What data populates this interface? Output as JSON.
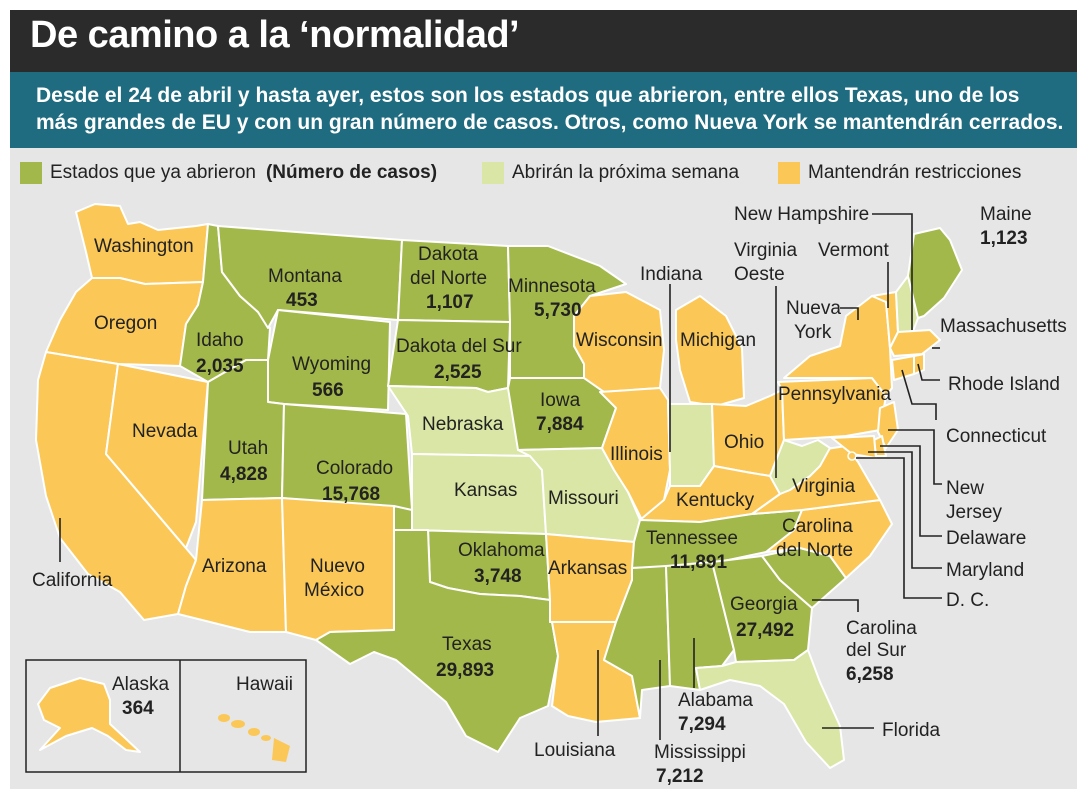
{
  "title": "De camino a la ‘normalidad’",
  "subtitle": "Desde el 24 de abril y hasta ayer, estos son los estados que abrieron, entre ellos Texas, uno de los más grandes de EU y con un gran número de casos. Otros, como Nueva York se mantendrán cerrados.",
  "colors": {
    "open": "#a3b84a",
    "next_week": "#d9e6a5",
    "restricted": "#fbc858",
    "title_bg": "#2b2b2b",
    "subtitle_bg": "#1f6b80",
    "map_bg": "#e6e6e6"
  },
  "legend": {
    "open_label": "Estados que ya abrieron",
    "cases_note": "(Número de casos)",
    "next_week_label": "Abrirán la próxima semana",
    "restricted_label": "Mantendrán restricciones"
  },
  "states": {
    "washington": {
      "name": "Washington",
      "status": "restricted"
    },
    "oregon": {
      "name": "Oregon",
      "status": "restricted"
    },
    "california": {
      "name": "California",
      "status": "restricted"
    },
    "nevada": {
      "name": "Nevada",
      "status": "restricted"
    },
    "idaho": {
      "name": "Idaho",
      "cases": "2,035",
      "status": "open"
    },
    "montana": {
      "name": "Montana",
      "cases": "453",
      "status": "open"
    },
    "wyoming": {
      "name": "Wyoming",
      "cases": "566",
      "status": "open"
    },
    "utah": {
      "name": "Utah",
      "cases": "4,828",
      "status": "open"
    },
    "colorado": {
      "name": "Colorado",
      "cases": "15,768",
      "status": "open"
    },
    "arizona": {
      "name": "Arizona",
      "status": "restricted"
    },
    "new_mexico": {
      "name_1": "Nuevo",
      "name_2": "México",
      "status": "restricted"
    },
    "north_dakota": {
      "name_1": "Dakota",
      "name_2": "del Norte",
      "cases": "1,107",
      "status": "open"
    },
    "south_dakota": {
      "name": "Dakota del Sur",
      "cases": "2,525",
      "status": "open"
    },
    "nebraska": {
      "name": "Nebraska",
      "status": "next_week"
    },
    "kansas": {
      "name": "Kansas",
      "status": "next_week"
    },
    "oklahoma": {
      "name": "Oklahoma",
      "cases": "3,748",
      "status": "open"
    },
    "texas": {
      "name": "Texas",
      "cases": "29,893",
      "status": "open"
    },
    "minnesota": {
      "name": "Minnesota",
      "cases": "5,730",
      "status": "open"
    },
    "iowa": {
      "name": "Iowa",
      "cases": "7,884",
      "status": "open"
    },
    "missouri": {
      "name": "Missouri",
      "status": "next_week"
    },
    "arkansas": {
      "name": "Arkansas",
      "status": "restricted"
    },
    "louisiana": {
      "name": "Louisiana",
      "status": "restricted"
    },
    "wisconsin": {
      "name": "Wisconsin",
      "status": "restricted"
    },
    "illinois": {
      "name": "Illinois",
      "status": "restricted"
    },
    "michigan": {
      "name": "Michigan",
      "status": "restricted"
    },
    "indiana": {
      "name": "Indiana",
      "status": "next_week"
    },
    "ohio": {
      "name": "Ohio",
      "status": "restricted"
    },
    "kentucky": {
      "name": "Kentucky",
      "status": "restricted"
    },
    "tennessee": {
      "name": "Tennessee",
      "cases": "11,891",
      "status": "open"
    },
    "mississippi": {
      "name": "Mississippi",
      "cases": "7,212",
      "status": "open"
    },
    "alabama": {
      "name": "Alabama",
      "cases": "7,294",
      "status": "open"
    },
    "georgia": {
      "name": "Georgia",
      "cases": "27,492",
      "status": "open"
    },
    "florida": {
      "name": "Florida",
      "status": "next_week"
    },
    "south_carolina": {
      "name_1": "Carolina",
      "name_2": "del Sur",
      "cases": "6,258",
      "status": "open"
    },
    "north_carolina": {
      "name_1": "Carolina",
      "name_2": "del Norte",
      "status": "restricted"
    },
    "virginia": {
      "name": "Virginia",
      "status": "restricted"
    },
    "west_virginia": {
      "name_1": "Virginia",
      "name_2": "Oeste",
      "status": "next_week"
    },
    "pennsylvania": {
      "name": "Pennsylvania",
      "status": "restricted"
    },
    "new_york": {
      "name_1": "Nueva",
      "name_2": "York",
      "status": "restricted"
    },
    "vermont": {
      "name": "Vermont",
      "status": "restricted"
    },
    "new_hampshire": {
      "name": "New Hampshire",
      "status": "next_week"
    },
    "maine": {
      "name": "Maine",
      "cases": "1,123",
      "status": "open"
    },
    "massachusetts": {
      "name": "Massachusetts",
      "status": "restricted"
    },
    "rhode_island": {
      "name": "Rhode Island",
      "status": "restricted"
    },
    "connecticut": {
      "name": "Connecticut",
      "status": "restricted"
    },
    "new_jersey": {
      "name_1": "New",
      "name_2": "Jersey",
      "status": "restricted"
    },
    "delaware": {
      "name": "Delaware",
      "status": "restricted"
    },
    "maryland": {
      "name": "Maryland",
      "status": "restricted"
    },
    "dc": {
      "name": "D. C.",
      "status": "restricted"
    },
    "alaska": {
      "name": "Alaska",
      "cases": "364",
      "status": "restricted"
    },
    "hawaii": {
      "name": "Hawaii",
      "status": "restricted"
    }
  }
}
